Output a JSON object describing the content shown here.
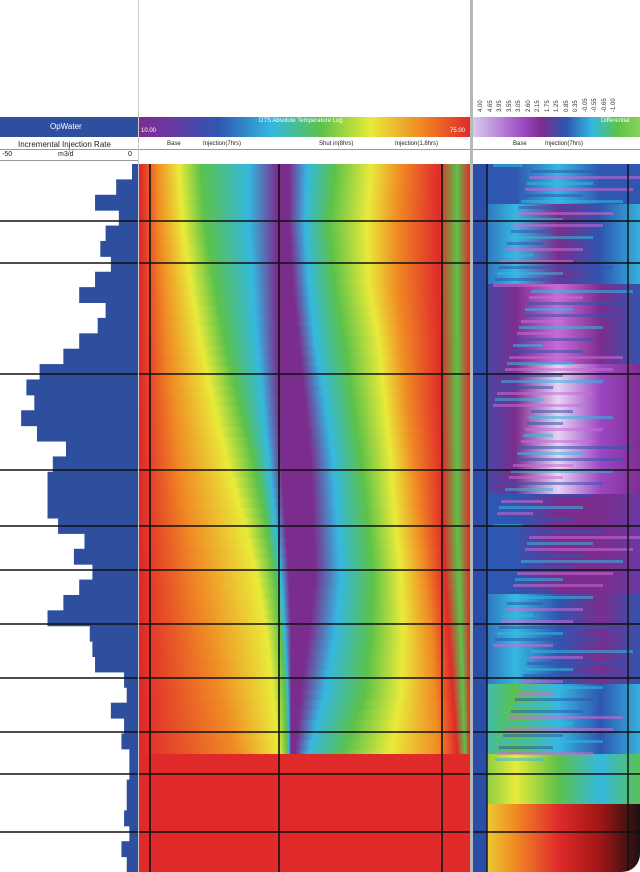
{
  "track1": {
    "title": "OpWater",
    "curve_label": "Incremental Injection Rate",
    "scale_left": "-50",
    "scale_unit": "m3/d",
    "scale_right": "0",
    "color": "#2e4f9e"
  },
  "track2": {
    "title": "DTS Absolute Temperature Log",
    "scale_min": "10.00",
    "scale_max": "75.00",
    "columns": [
      "Base",
      "Injection(7hrs)",
      "Shut in(8hrs)",
      "Injection(1.8hrs)"
    ]
  },
  "track3": {
    "title": "Differential",
    "scale_ticks": [
      "4.00",
      "4.65",
      "3.95",
      "3.55",
      "3.05",
      "2.60",
      "2.15",
      "1.75",
      "1.25",
      "0.85",
      "0.35",
      "-0.05",
      "-0.55",
      "-0.65",
      "-1.00"
    ],
    "columns": [
      "Base",
      "Injection(7hrs)"
    ]
  },
  "chart_data": {
    "type": "heatmap",
    "title": "DTS Absolute Temperature Log",
    "colorscale": [
      "#7b2d8e",
      "#2f56b0",
      "#35b8e0",
      "#5cc24a",
      "#e9ea3a",
      "#f08a24",
      "#e02a2a"
    ],
    "value_range": [
      10.0,
      75.0
    ],
    "x_columns": [
      "Base",
      "Injection(7hrs)",
      "Shut in(8hrs)",
      "Injection(1.8hrs)"
    ],
    "injection_rate_profile": {
      "axis": "Incremental Injection Rate",
      "unit": "m3/d",
      "range": [
        -50,
        0
      ],
      "values": [
        0,
        -6,
        -14,
        -5,
        -10,
        -12,
        -8,
        -14,
        -20,
        -10,
        -13,
        -20,
        -26,
        -35,
        -40,
        -37,
        -42,
        -36,
        -25,
        -30,
        -32,
        -32,
        -32,
        -28,
        -18,
        -22,
        -15,
        -20,
        -26,
        -32,
        -16,
        -15,
        -14,
        -3,
        -2,
        -8,
        -3,
        -4,
        -1,
        -1,
        -2,
        -2,
        -3,
        -1,
        -4,
        -2
      ]
    }
  }
}
